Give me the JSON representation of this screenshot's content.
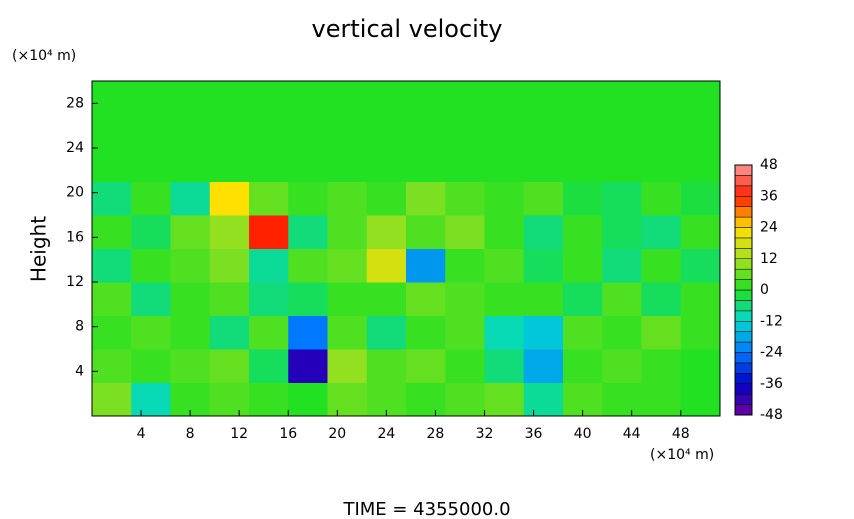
{
  "chart_data": {
    "type": "heatmap",
    "title": "vertical velocity",
    "xlabel": "(×10⁴ m)",
    "ylabel": "Height",
    "yunit": "(×10⁴ m)",
    "footer": "TIME = 4355000.0",
    "xlim": [
      0,
      51.2
    ],
    "ylim": [
      0,
      30
    ],
    "xticks": [
      4,
      8,
      12,
      16,
      20,
      24,
      28,
      32,
      36,
      40,
      44,
      48
    ],
    "yticks": [
      4,
      8,
      12,
      16,
      20,
      24,
      28
    ],
    "x": [
      0,
      3.2,
      6.4,
      9.6,
      12.8,
      16,
      19.2,
      22.4,
      25.6,
      28.8,
      32,
      35.2,
      38.4,
      41.6,
      44.8,
      48,
      51.2
    ],
    "y": [
      0,
      3,
      6,
      9,
      12,
      15,
      18,
      21,
      24,
      27,
      30
    ],
    "z": [
      [
        8,
        -10,
        2,
        4,
        2,
        0,
        6,
        4,
        2,
        4,
        6,
        -8,
        4,
        2,
        2,
        0
      ],
      [
        4,
        2,
        4,
        6,
        -4,
        -40,
        10,
        4,
        6,
        2,
        -6,
        -18,
        2,
        4,
        2,
        0
      ],
      [
        2,
        4,
        2,
        -6,
        4,
        -24,
        4,
        -6,
        2,
        4,
        -10,
        -14,
        4,
        2,
        6,
        2
      ],
      [
        4,
        -6,
        2,
        4,
        -6,
        -4,
        2,
        2,
        6,
        4,
        2,
        2,
        -4,
        4,
        -4,
        2
      ],
      [
        -6,
        2,
        4,
        8,
        -8,
        4,
        6,
        18,
        -20,
        2,
        4,
        -4,
        2,
        -6,
        2,
        -4
      ],
      [
        2,
        -4,
        6,
        10,
        36,
        -6,
        4,
        10,
        4,
        8,
        2,
        -6,
        2,
        -4,
        -6,
        2
      ],
      [
        -6,
        2,
        -8,
        24,
        6,
        2,
        4,
        2,
        8,
        4,
        2,
        4,
        -2,
        -4,
        2,
        -2
      ],
      [
        0,
        0,
        0,
        0,
        0,
        0,
        0,
        0,
        0,
        0,
        0,
        0,
        0,
        0,
        0,
        0
      ],
      [
        0,
        0,
        0,
        0,
        0,
        0,
        0,
        0,
        0,
        0,
        0,
        0,
        0,
        0,
        0,
        0
      ],
      [
        0,
        0,
        0,
        0,
        0,
        0,
        0,
        0,
        0,
        0,
        0,
        0,
        0,
        0,
        0,
        0
      ]
    ],
    "colorbar": {
      "ticks": [
        -48,
        -36,
        -24,
        -12,
        0,
        12,
        24,
        36,
        48
      ],
      "colors": [
        "#7000a0",
        "#0000c8",
        "#0078ff",
        "#00d8d0",
        "#22e022",
        "#a8e020",
        "#ffe000",
        "#ff2000",
        "#ff9a9a"
      ]
    }
  }
}
